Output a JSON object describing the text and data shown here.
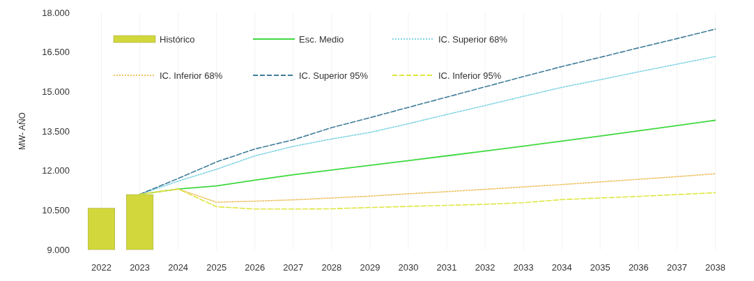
{
  "chart_data": {
    "type": "line",
    "ylabel": "MW- AÑO",
    "categories": [
      "2022",
      "2023",
      "2024",
      "2025",
      "2026",
      "2027",
      "2028",
      "2029",
      "2030",
      "2031",
      "2032",
      "2033",
      "2034",
      "2035",
      "2036",
      "2037",
      "2038"
    ],
    "series": [
      {
        "name": "Histórico",
        "type": "bar",
        "color": "#d2d83c",
        "values": [
          10570,
          11090,
          null,
          null,
          null,
          null,
          null,
          null,
          null,
          null,
          null,
          null,
          null,
          null,
          null,
          null,
          null
        ]
      },
      {
        "name": "Esc. Medio",
        "color": "#3fd83f",
        "line_style": "solid",
        "values": [
          null,
          11100,
          11300,
          11420,
          11640,
          11840,
          12020,
          12200,
          12380,
          12560,
          12740,
          12930,
          13120,
          13310,
          13510,
          13710,
          13910
        ]
      },
      {
        "name": "IC. Superior 68%",
        "color": "#7fd3e3",
        "line_style": "dotted",
        "values": [
          null,
          11100,
          11600,
          12050,
          12560,
          12920,
          13200,
          13450,
          13780,
          14130,
          14470,
          14820,
          15160,
          15450,
          15750,
          16040,
          16330
        ]
      },
      {
        "name": "IC. Inferior 68%",
        "color": "#eec262",
        "line_style": "dotted",
        "values": [
          null,
          11100,
          11300,
          10800,
          10840,
          10890,
          10960,
          11030,
          11120,
          11200,
          11290,
          11380,
          11470,
          11570,
          11670,
          11770,
          11880
        ]
      },
      {
        "name": "IC. Superior 95%",
        "color": "#3f7c99",
        "line_style": "dashed",
        "values": [
          null,
          11100,
          11700,
          12330,
          12820,
          13170,
          13630,
          14010,
          14400,
          14790,
          15180,
          15570,
          15950,
          16300,
          16660,
          17010,
          17370
        ]
      },
      {
        "name": "IC. Inferior 95%",
        "color": "#dfe640",
        "line_style": "dashed",
        "values": [
          null,
          11100,
          11300,
          10630,
          10540,
          10540,
          10550,
          10600,
          10640,
          10680,
          10720,
          10780,
          10900,
          10960,
          11020,
          11090,
          11160
        ]
      }
    ],
    "ylim": [
      9000,
      18000
    ],
    "yticks": [
      {
        "value": 9000,
        "label": "9.000"
      },
      {
        "value": 10500,
        "label": "10.500"
      },
      {
        "value": 12000,
        "label": "12.000"
      },
      {
        "value": 13500,
        "label": "13.500"
      },
      {
        "value": 15000,
        "label": "15.000"
      },
      {
        "value": 16500,
        "label": "16.500"
      },
      {
        "value": 18000,
        "label": "18.000"
      }
    ],
    "grid": "x",
    "legend": "top left"
  }
}
